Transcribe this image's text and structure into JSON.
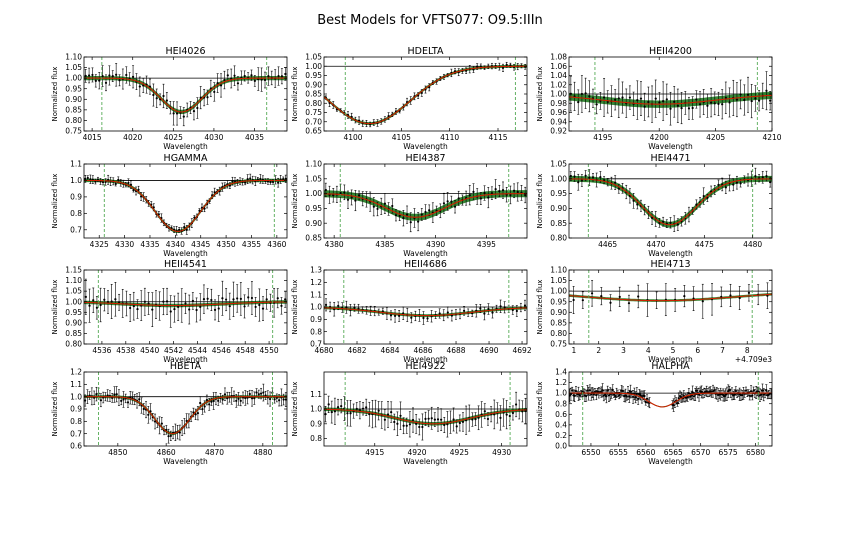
{
  "figure_title": "Best Models for VFTS077: O9.5:IIIn",
  "colors": {
    "model_fill": "#1f7a1f",
    "fit_line": "#cc2200",
    "continuum": "#000000",
    "marker": "#55aa55",
    "observed": "#000000"
  },
  "chart_data": [
    {
      "type": "line",
      "title": "HEI4026",
      "xlabel": "Wavelength",
      "ylabel": "Normalized flux",
      "xlim": [
        4014,
        4039
      ],
      "ylim": [
        0.75,
        1.1
      ],
      "xticks": [
        {
          "v": 4015,
          "t": "4015"
        },
        {
          "v": 4020,
          "t": "4020"
        },
        {
          "v": 4025,
          "t": "4025"
        },
        {
          "v": 4030,
          "t": "4030"
        },
        {
          "v": 4035,
          "t": "4035"
        }
      ],
      "yticks": [
        {
          "v": 0.75,
          "t": "0.75"
        },
        {
          "v": 0.8,
          "t": "0.80"
        },
        {
          "v": 0.85,
          "t": "0.85"
        },
        {
          "v": 0.9,
          "t": "0.90"
        },
        {
          "v": 0.95,
          "t": "0.95"
        },
        {
          "v": 1.0,
          "t": "1.00"
        },
        {
          "v": 1.05,
          "t": "1.05"
        },
        {
          "v": 1.1,
          "t": "1.10"
        }
      ],
      "continuum": 1.0,
      "markers": [
        4016.2,
        4036.5
      ],
      "line_center": 4026,
      "depth": 0.16,
      "width": 2.5,
      "noise": 0.025,
      "err": 0.04,
      "n_points": 60,
      "band": 0.01,
      "offset_label": ""
    },
    {
      "type": "line",
      "title": "HDELTA",
      "xlabel": "Wavelength",
      "ylabel": "Normalized flux",
      "xlim": [
        4097,
        4118
      ],
      "ylim": [
        0.65,
        1.05
      ],
      "xticks": [
        {
          "v": 4100,
          "t": "4100"
        },
        {
          "v": 4105,
          "t": "4105"
        },
        {
          "v": 4110,
          "t": "4110"
        },
        {
          "v": 4115,
          "t": "4115"
        }
      ],
      "yticks": [
        {
          "v": 0.65,
          "t": "0.65"
        },
        {
          "v": 0.7,
          "t": "0.70"
        },
        {
          "v": 0.75,
          "t": "0.75"
        },
        {
          "v": 0.8,
          "t": "0.80"
        },
        {
          "v": 0.85,
          "t": "0.85"
        },
        {
          "v": 0.9,
          "t": "0.90"
        },
        {
          "v": 0.95,
          "t": "0.95"
        },
        {
          "v": 1.0,
          "t": "1.00"
        },
        {
          "v": 1.05,
          "t": "1.05"
        }
      ],
      "continuum": 1.0,
      "markers": [
        4099.2,
        4116.8
      ],
      "line_center": 4101.7,
      "depth": 0.31,
      "width": 4.2,
      "noise": 0.01,
      "err": 0.015,
      "n_points": 55,
      "band": 0.008,
      "offset_label": ""
    },
    {
      "type": "line",
      "title": "HEII4200",
      "xlabel": "Wavelength",
      "ylabel": "Normalized flux",
      "xlim": [
        4192,
        4210
      ],
      "ylim": [
        0.92,
        1.08
      ],
      "xticks": [
        {
          "v": 4195,
          "t": "4195"
        },
        {
          "v": 4200,
          "t": "4200"
        },
        {
          "v": 4205,
          "t": "4205"
        },
        {
          "v": 4210,
          "t": "4210"
        }
      ],
      "yticks": [
        {
          "v": 0.92,
          "t": "0.92"
        },
        {
          "v": 0.94,
          "t": "0.94"
        },
        {
          "v": 0.96,
          "t": "0.96"
        },
        {
          "v": 0.98,
          "t": "0.98"
        },
        {
          "v": 1.0,
          "t": "1.00"
        },
        {
          "v": 1.02,
          "t": "1.02"
        },
        {
          "v": 1.04,
          "t": "1.04"
        },
        {
          "v": 1.06,
          "t": "1.06"
        },
        {
          "v": 1.08,
          "t": "1.08"
        }
      ],
      "continuum": 1.0,
      "markers": [
        4194.3,
        4208.7
      ],
      "line_center": 4200,
      "depth": 0.022,
      "width": 5.0,
      "noise": 0.012,
      "err": 0.03,
      "n_points": 55,
      "band": 0.008,
      "offset_label": ""
    },
    {
      "type": "line",
      "title": "HGAMMA",
      "xlabel": "Wavelength",
      "ylabel": "Normalized flux",
      "xlim": [
        4322,
        4362
      ],
      "ylim": [
        0.65,
        1.1
      ],
      "xticks": [
        {
          "v": 4325,
          "t": "4325"
        },
        {
          "v": 4330,
          "t": "4330"
        },
        {
          "v": 4335,
          "t": "4335"
        },
        {
          "v": 4340,
          "t": "4340"
        },
        {
          "v": 4345,
          "t": "4345"
        },
        {
          "v": 4350,
          "t": "4350"
        },
        {
          "v": 4355,
          "t": "4355"
        },
        {
          "v": 4360,
          "t": "4360"
        }
      ],
      "yticks": [
        {
          "v": 0.7,
          "t": "0.7"
        },
        {
          "v": 0.8,
          "t": "0.8"
        },
        {
          "v": 0.9,
          "t": "0.9"
        },
        {
          "v": 1.0,
          "t": "1.0"
        },
        {
          "v": 1.1,
          "t": "1.1"
        }
      ],
      "continuum": 1.0,
      "markers": [
        4326,
        4359.5
      ],
      "line_center": 4340.5,
      "depth": 0.31,
      "width": 4.5,
      "noise": 0.015,
      "err": 0.02,
      "n_points": 80,
      "band": 0.01,
      "offset_label": ""
    },
    {
      "type": "line",
      "title": "HEI4387",
      "xlabel": "Wavelength",
      "ylabel": "Normalized flux",
      "xlim": [
        4379,
        4399
      ],
      "ylim": [
        0.85,
        1.1
      ],
      "xticks": [
        {
          "v": 4380,
          "t": "4380"
        },
        {
          "v": 4385,
          "t": "4385"
        },
        {
          "v": 4390,
          "t": "4390"
        },
        {
          "v": 4395,
          "t": "4395"
        }
      ],
      "yticks": [
        {
          "v": 0.85,
          "t": "0.85"
        },
        {
          "v": 0.9,
          "t": "0.90"
        },
        {
          "v": 0.95,
          "t": "0.95"
        },
        {
          "v": 1.0,
          "t": "1.00"
        },
        {
          "v": 1.05,
          "t": "1.05"
        },
        {
          "v": 1.1,
          "t": "1.10"
        }
      ],
      "continuum": 1.0,
      "markers": [
        4380.6,
        4397.2
      ],
      "line_center": 4388,
      "depth": 0.08,
      "width": 2.9,
      "noise": 0.018,
      "err": 0.025,
      "n_points": 55,
      "band": 0.012,
      "offset_label": ""
    },
    {
      "type": "line",
      "title": "HEI4471",
      "xlabel": "Wavelength",
      "ylabel": "Normalized flux",
      "xlim": [
        4461,
        4482
      ],
      "ylim": [
        0.8,
        1.05
      ],
      "xticks": [
        {
          "v": 4465,
          "t": "4465"
        },
        {
          "v": 4470,
          "t": "4470"
        },
        {
          "v": 4475,
          "t": "4475"
        },
        {
          "v": 4480,
          "t": "4480"
        }
      ],
      "yticks": [
        {
          "v": 0.8,
          "t": "0.80"
        },
        {
          "v": 0.85,
          "t": "0.85"
        },
        {
          "v": 0.9,
          "t": "0.90"
        },
        {
          "v": 0.95,
          "t": "0.95"
        },
        {
          "v": 1.0,
          "t": "1.00"
        },
        {
          "v": 1.05,
          "t": "1.05"
        }
      ],
      "continuum": 1.0,
      "markers": [
        4463,
        4480
      ],
      "line_center": 4471.4,
      "depth": 0.155,
      "width": 2.8,
      "noise": 0.012,
      "err": 0.02,
      "n_points": 55,
      "band": 0.01,
      "offset_label": ""
    },
    {
      "type": "line",
      "title": "HEII4541",
      "xlabel": "Wavelength",
      "ylabel": "Normalized flux",
      "xlim": [
        4534.5,
        4551.5
      ],
      "ylim": [
        0.8,
        1.15
      ],
      "xticks": [
        {
          "v": 4536,
          "t": "4536"
        },
        {
          "v": 4538,
          "t": "4538"
        },
        {
          "v": 4540,
          "t": "4540"
        },
        {
          "v": 4542,
          "t": "4542"
        },
        {
          "v": 4544,
          "t": "4544"
        },
        {
          "v": 4546,
          "t": "4546"
        },
        {
          "v": 4548,
          "t": "4548"
        },
        {
          "v": 4550,
          "t": "4550"
        }
      ],
      "yticks": [
        {
          "v": 0.8,
          "t": "0.80"
        },
        {
          "v": 0.85,
          "t": "0.85"
        },
        {
          "v": 0.9,
          "t": "0.90"
        },
        {
          "v": 0.95,
          "t": "0.95"
        },
        {
          "v": 1.0,
          "t": "1.00"
        },
        {
          "v": 1.05,
          "t": "1.05"
        },
        {
          "v": 1.1,
          "t": "1.10"
        },
        {
          "v": 1.15,
          "t": "1.15"
        }
      ],
      "continuum": 1.0,
      "markers": [
        4535.7,
        4550.3
      ],
      "line_center": 4542,
      "depth": 0.018,
      "width": 4.0,
      "noise": 0.03,
      "err": 0.06,
      "n_points": 55,
      "band": 0.008,
      "offset_label": ""
    },
    {
      "type": "line",
      "title": "HEII4686",
      "xlabel": "Wavelength",
      "ylabel": "Normalized flux",
      "xlim": [
        4680,
        4692.3
      ],
      "ylim": [
        0.7,
        1.3
      ],
      "xticks": [
        {
          "v": 4680,
          "t": "4680"
        },
        {
          "v": 4682,
          "t": "4682"
        },
        {
          "v": 4684,
          "t": "4684"
        },
        {
          "v": 4686,
          "t": "4686"
        },
        {
          "v": 4688,
          "t": "4688"
        },
        {
          "v": 4690,
          "t": "4690"
        },
        {
          "v": 4692,
          "t": "4692"
        }
      ],
      "yticks": [
        {
          "v": 0.7,
          "t": "0.7"
        },
        {
          "v": 0.8,
          "t": "0.8"
        },
        {
          "v": 0.9,
          "t": "0.9"
        },
        {
          "v": 1.0,
          "t": "1.0"
        },
        {
          "v": 1.1,
          "t": "1.1"
        },
        {
          "v": 1.2,
          "t": "1.2"
        },
        {
          "v": 1.3,
          "t": "1.3"
        }
      ],
      "continuum": 1.0,
      "markers": [
        4681.2,
        4691.2
      ],
      "line_center": 4686.2,
      "depth": 0.07,
      "width": 2.8,
      "noise": 0.025,
      "err": 0.04,
      "n_points": 50,
      "band": 0.012,
      "offset_label": ""
    },
    {
      "type": "line",
      "title": "HEI4713",
      "xlabel": "Wavelength",
      "ylabel": "Normalized flux",
      "xlim": [
        0.8,
        9.0
      ],
      "ylim": [
        0.75,
        1.1
      ],
      "xticks": [
        {
          "v": 1,
          "t": "1"
        },
        {
          "v": 2,
          "t": "2"
        },
        {
          "v": 3,
          "t": "3"
        },
        {
          "v": 4,
          "t": "4"
        },
        {
          "v": 5,
          "t": "5"
        },
        {
          "v": 6,
          "t": "6"
        },
        {
          "v": 7,
          "t": "7"
        },
        {
          "v": 8,
          "t": "8"
        }
      ],
      "yticks": [
        {
          "v": 0.75,
          "t": "0.75"
        },
        {
          "v": 0.8,
          "t": "0.80"
        },
        {
          "v": 0.85,
          "t": "0.85"
        },
        {
          "v": 0.9,
          "t": "0.90"
        },
        {
          "v": 0.95,
          "t": "0.95"
        },
        {
          "v": 1.0,
          "t": "1.00"
        },
        {
          "v": 1.05,
          "t": "1.05"
        },
        {
          "v": 1.1,
          "t": "1.10"
        }
      ],
      "continuum": 1.0,
      "markers": [
        1.6,
        8.2
      ],
      "line_center": 4.5,
      "depth": 0.045,
      "width": 3.0,
      "noise": 0.02,
      "err": 0.06,
      "n_points": 22,
      "band": 0.006,
      "offset_label": "+4.709e3"
    },
    {
      "type": "line",
      "title": "HBETA",
      "xlabel": "Wavelength",
      "ylabel": "Normalized flux",
      "xlim": [
        4843,
        4885
      ],
      "ylim": [
        0.6,
        1.2
      ],
      "xticks": [
        {
          "v": 4850,
          "t": "4850"
        },
        {
          "v": 4860,
          "t": "4860"
        },
        {
          "v": 4870,
          "t": "4870"
        },
        {
          "v": 4880,
          "t": "4880"
        }
      ],
      "yticks": [
        {
          "v": 0.6,
          "t": "0.6"
        },
        {
          "v": 0.7,
          "t": "0.7"
        },
        {
          "v": 0.8,
          "t": "0.8"
        },
        {
          "v": 0.9,
          "t": "0.9"
        },
        {
          "v": 1.0,
          "t": "1.0"
        },
        {
          "v": 1.1,
          "t": "1.1"
        },
        {
          "v": 1.2,
          "t": "1.2"
        }
      ],
      "continuum": 1.0,
      "markers": [
        4846,
        4882
      ],
      "line_center": 4861.3,
      "depth": 0.3,
      "width": 3.6,
      "noise": 0.035,
      "err": 0.05,
      "n_points": 90,
      "band": 0.012,
      "offset_label": ""
    },
    {
      "type": "line",
      "title": "HEI4922",
      "xlabel": "Wavelength",
      "ylabel": "Normalized flux",
      "xlim": [
        4909,
        4933
      ],
      "ylim": [
        0.75,
        1.25
      ],
      "xticks": [
        {
          "v": 4915,
          "t": "4915"
        },
        {
          "v": 4920,
          "t": "4920"
        },
        {
          "v": 4925,
          "t": "4925"
        },
        {
          "v": 4930,
          "t": "4930"
        }
      ],
      "yticks": [
        {
          "v": 0.8,
          "t": "0.8"
        },
        {
          "v": 0.9,
          "t": "0.9"
        },
        {
          "v": 1.0,
          "t": "1.0"
        },
        {
          "v": 1.1,
          "t": "1.1"
        }
      ],
      "continuum": 1.0,
      "markers": [
        4911.5,
        4931
      ],
      "line_center": 4921.9,
      "depth": 0.1,
      "width": 4.5,
      "noise": 0.04,
      "err": 0.07,
      "n_points": 65,
      "band": 0.012,
      "offset_label": ""
    },
    {
      "type": "line",
      "title": "HALPHA",
      "xlabel": "Wavelength",
      "ylabel": "Normalized flux",
      "xlim": [
        6546,
        6583
      ],
      "ylim": [
        0.0,
        1.4
      ],
      "xticks": [
        {
          "v": 6550,
          "t": "6550"
        },
        {
          "v": 6555,
          "t": "6555"
        },
        {
          "v": 6560,
          "t": "6560"
        },
        {
          "v": 6565,
          "t": "6565"
        },
        {
          "v": 6570,
          "t": "6570"
        },
        {
          "v": 6575,
          "t": "6575"
        },
        {
          "v": 6580,
          "t": "6580"
        }
      ],
      "yticks": [
        {
          "v": 0.0,
          "t": "0.0"
        },
        {
          "v": 0.2,
          "t": "0.2"
        },
        {
          "v": 0.4,
          "t": "0.4"
        },
        {
          "v": 0.6,
          "t": "0.6"
        },
        {
          "v": 0.8,
          "t": "0.8"
        },
        {
          "v": 1.0,
          "t": "1.0"
        },
        {
          "v": 1.2,
          "t": "1.2"
        },
        {
          "v": 1.4,
          "t": "1.4"
        }
      ],
      "continuum": 1.0,
      "markers": [
        6548.5,
        6580.5
      ],
      "line_center": 6563,
      "depth": 0.26,
      "width": 2.5,
      "noise": 0.06,
      "err": 0.09,
      "n_points": 160,
      "band": 0.01,
      "gap": [
        6560.8,
        6564.8
      ],
      "offset_label": ""
    }
  ]
}
